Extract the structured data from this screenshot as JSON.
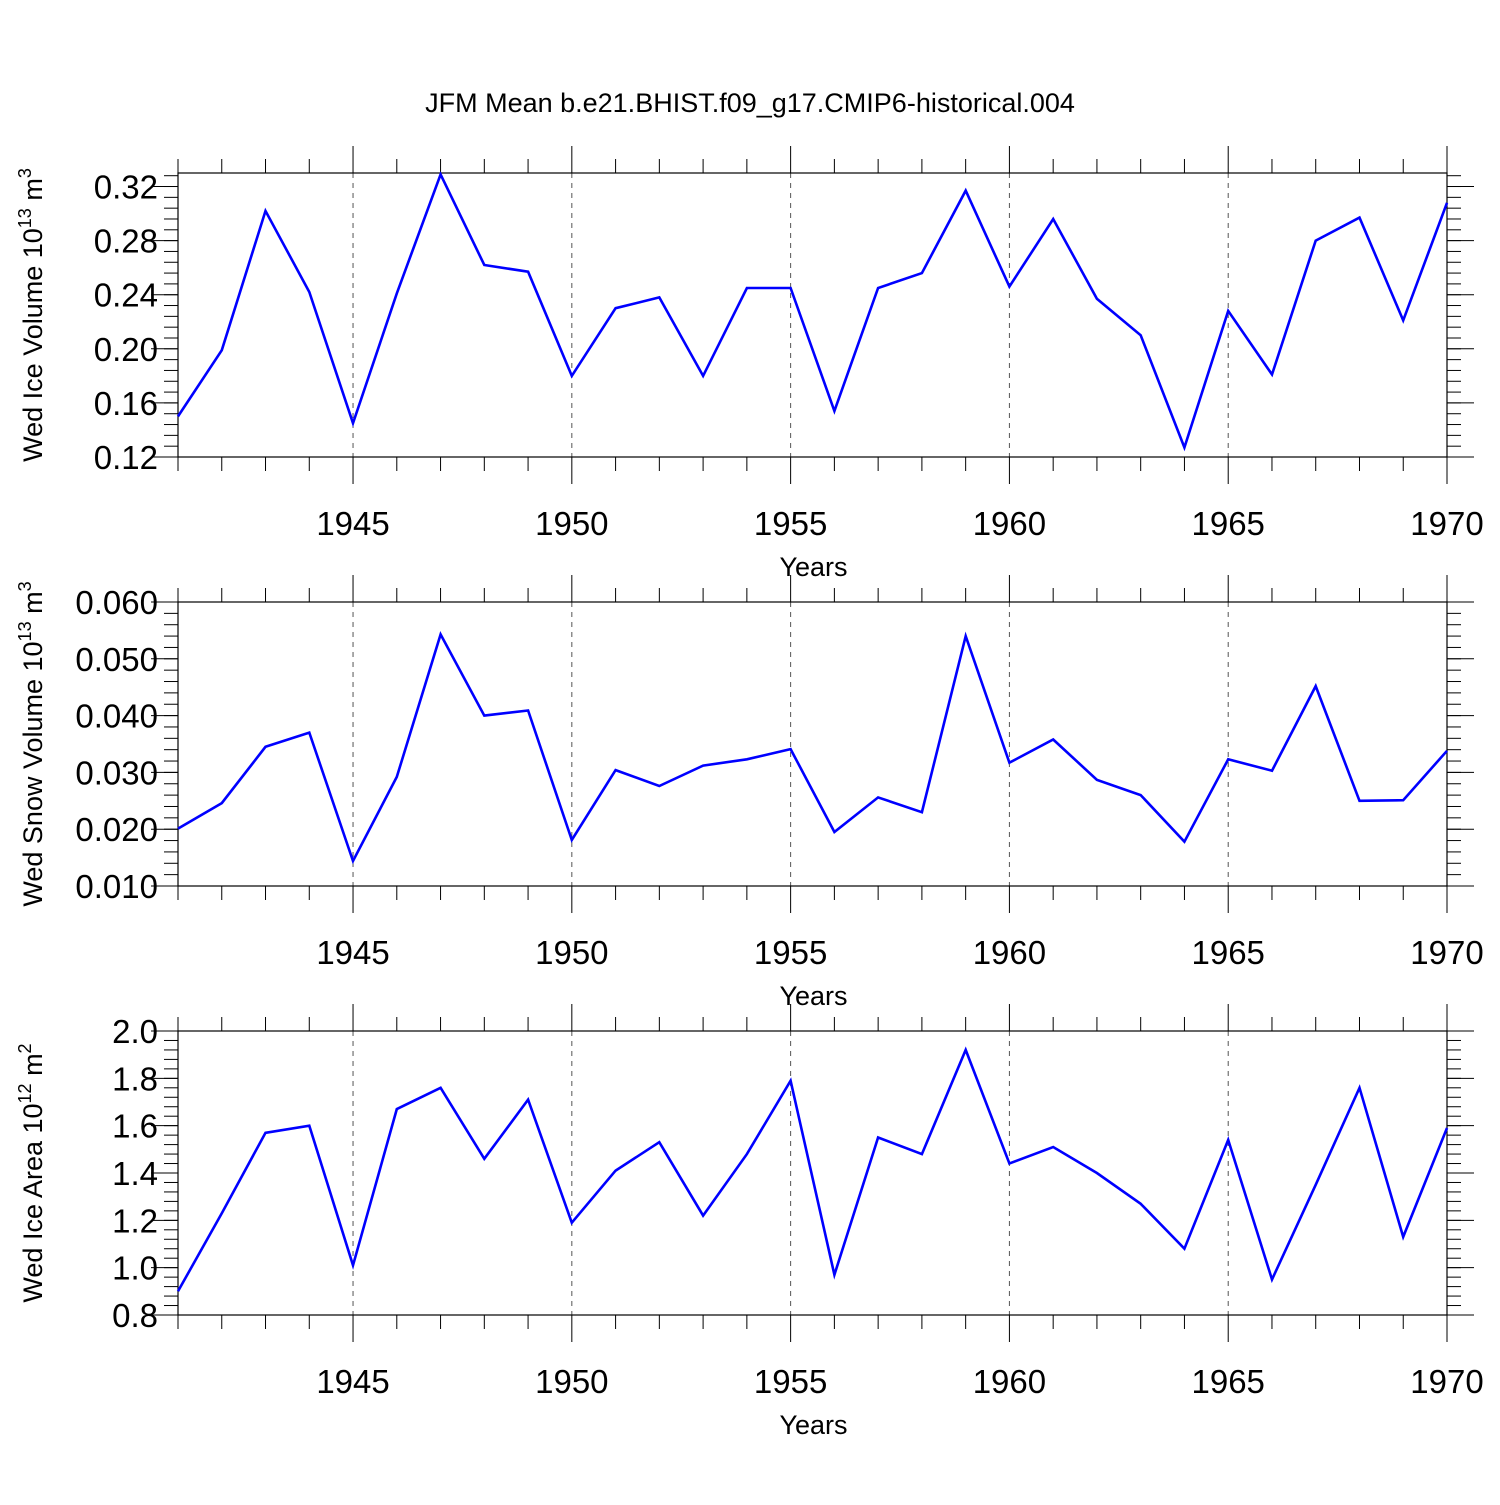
{
  "figure": {
    "title": "JFM Mean b.e21.BHIST.f09_g17.CMIP6-historical.004",
    "line_color": "#0000ff",
    "grid_color": "#555555"
  },
  "chart_data": [
    {
      "type": "line",
      "name": "ice-volume",
      "title": "",
      "ylabel": "Wed Ice Volume 10",
      "ylabel_sup": "13",
      "ylabel_unit": " m",
      "ylabel_unit_sup": "3",
      "xlabel": "Years",
      "xlim": [
        1941,
        1970
      ],
      "ylim": [
        0.12,
        0.33
      ],
      "yticks": [
        0.12,
        0.16,
        0.2,
        0.24,
        0.28,
        0.32
      ],
      "ytick_labels": [
        "0.12",
        "0.16",
        "0.20",
        "0.24",
        "0.28",
        "0.32"
      ],
      "yminor_step": 0.008,
      "xticks": [
        1945,
        1950,
        1955,
        1960,
        1965,
        1970
      ],
      "xtick_labels": [
        "1945",
        "1950",
        "1955",
        "1960",
        "1965",
        "1970"
      ],
      "x": [
        1941,
        1942,
        1943,
        1944,
        1945,
        1946,
        1947,
        1948,
        1949,
        1950,
        1951,
        1952,
        1953,
        1954,
        1955,
        1956,
        1957,
        1958,
        1959,
        1960,
        1961,
        1962,
        1963,
        1964,
        1965,
        1966,
        1967,
        1968,
        1969,
        1970
      ],
      "values": [
        0.15,
        0.199,
        0.302,
        0.242,
        0.145,
        0.241,
        0.329,
        0.262,
        0.257,
        0.18,
        0.23,
        0.238,
        0.18,
        0.245,
        0.245,
        0.154,
        0.245,
        0.256,
        0.317,
        0.246,
        0.296,
        0.237,
        0.21,
        0.127,
        0.228,
        0.181,
        0.28,
        0.297,
        0.221,
        0.308
      ]
    },
    {
      "type": "line",
      "name": "snow-volume",
      "title": "",
      "ylabel": "Wed Snow Volume 10",
      "ylabel_sup": "13",
      "ylabel_unit": " m",
      "ylabel_unit_sup": "3",
      "xlabel": "Years",
      "xlim": [
        1941,
        1970
      ],
      "ylim": [
        0.01,
        0.06
      ],
      "yticks": [
        0.01,
        0.02,
        0.03,
        0.04,
        0.05,
        0.06
      ],
      "ytick_labels": [
        "0.010",
        "0.020",
        "0.030",
        "0.040",
        "0.050",
        "0.060"
      ],
      "yminor_step": 0.002,
      "xticks": [
        1945,
        1950,
        1955,
        1960,
        1965,
        1970
      ],
      "xtick_labels": [
        "1945",
        "1950",
        "1955",
        "1960",
        "1965",
        "1970"
      ],
      "x": [
        1941,
        1942,
        1943,
        1944,
        1945,
        1946,
        1947,
        1948,
        1949,
        1950,
        1951,
        1952,
        1953,
        1954,
        1955,
        1956,
        1957,
        1958,
        1959,
        1960,
        1961,
        1962,
        1963,
        1964,
        1965,
        1966,
        1967,
        1968,
        1969,
        1970
      ],
      "values": [
        0.0201,
        0.0246,
        0.0345,
        0.037,
        0.0144,
        0.0292,
        0.0543,
        0.04,
        0.0409,
        0.0181,
        0.0304,
        0.0276,
        0.0312,
        0.0323,
        0.0341,
        0.0195,
        0.0256,
        0.023,
        0.054,
        0.0317,
        0.0358,
        0.0287,
        0.026,
        0.0178,
        0.0323,
        0.0303,
        0.0452,
        0.025,
        0.0251,
        0.0338
      ]
    },
    {
      "type": "line",
      "name": "ice-area",
      "title": "",
      "ylabel": "Wed Ice Area 10",
      "ylabel_sup": "12",
      "ylabel_unit": " m",
      "ylabel_unit_sup": "2",
      "xlabel": "Years",
      "xlim": [
        1941,
        1970
      ],
      "ylim": [
        0.8,
        2.0
      ],
      "yticks": [
        0.8,
        1.0,
        1.2,
        1.4,
        1.6,
        1.8,
        2.0
      ],
      "ytick_labels": [
        "0.8",
        "1.0",
        "1.2",
        "1.4",
        "1.6",
        "1.8",
        "2.0"
      ],
      "yminor_step": 0.04,
      "xticks": [
        1945,
        1950,
        1955,
        1960,
        1965,
        1970
      ],
      "xtick_labels": [
        "1945",
        "1950",
        "1955",
        "1960",
        "1965",
        "1970"
      ],
      "x": [
        1941,
        1942,
        1943,
        1944,
        1945,
        1946,
        1947,
        1948,
        1949,
        1950,
        1951,
        1952,
        1953,
        1954,
        1955,
        1956,
        1957,
        1958,
        1959,
        1960,
        1961,
        1962,
        1963,
        1964,
        1965,
        1966,
        1967,
        1968,
        1969,
        1970
      ],
      "values": [
        0.9,
        1.23,
        1.57,
        1.6,
        1.01,
        1.67,
        1.76,
        1.46,
        1.71,
        1.19,
        1.41,
        1.53,
        1.22,
        1.48,
        1.79,
        0.97,
        1.55,
        1.48,
        1.92,
        1.44,
        1.51,
        1.4,
        1.27,
        1.08,
        1.54,
        0.95,
        1.35,
        1.76,
        1.13,
        1.59
      ]
    }
  ]
}
